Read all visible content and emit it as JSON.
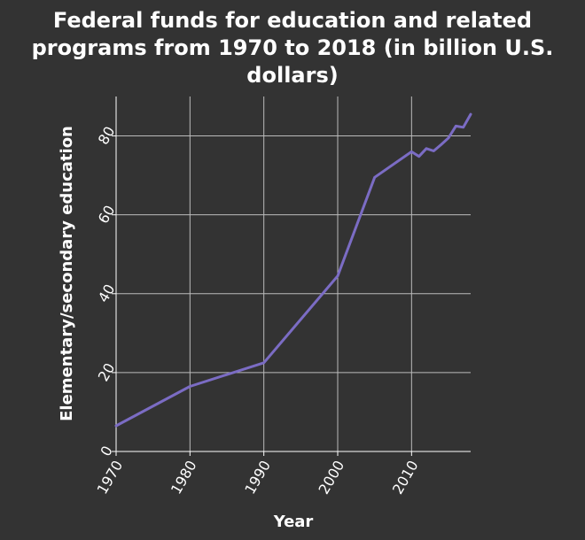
{
  "colors": {
    "background": "#333333",
    "grid": "#bbbbbb",
    "axis": "#ffffff",
    "line": "#7b6cc4",
    "text": "#ffffff"
  },
  "chart_data": {
    "type": "line",
    "title_lines": [
      "Federal funds for education and related",
      "programs from 1970 to 2018 (in billion U.S.",
      "dollars)"
    ],
    "xlabel": "Year",
    "ylabel": "Elementary/secondary education",
    "xlim": [
      1970,
      2018
    ],
    "ylim": [
      0,
      90
    ],
    "x_ticks": [
      1970,
      1980,
      1990,
      2000,
      2010
    ],
    "y_ticks": [
      0,
      20,
      40,
      60,
      80
    ],
    "grid": true,
    "series": [
      {
        "x": [
          1970,
          1980,
          1990,
          2000,
          2005,
          2010,
          2011,
          2012,
          2013,
          2014,
          2015,
          2016,
          2017,
          2018
        ],
        "y": [
          6.5,
          16.5,
          22.5,
          44.5,
          69.5,
          76,
          74.8,
          76.8,
          76.2,
          77.8,
          79.5,
          82.5,
          82.2,
          85.5
        ]
      }
    ]
  }
}
